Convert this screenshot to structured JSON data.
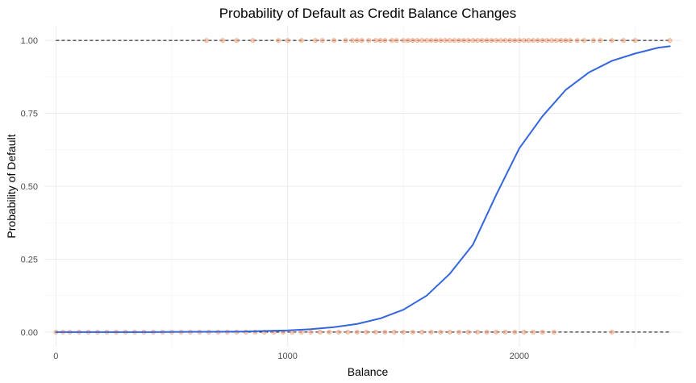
{
  "chart_data": {
    "type": "scatter",
    "title": "Probability of Default as Credit Balance Changes",
    "xlabel": "Balance",
    "ylabel": "Probability of Default",
    "xlim": [
      -50,
      2700
    ],
    "ylim": [
      -0.05,
      1.05
    ],
    "x_ticks": [
      0,
      1000,
      2000
    ],
    "x_tick_labels": [
      "0",
      "1000",
      "2000"
    ],
    "y_ticks": [
      0,
      0.25,
      0.5,
      0.75,
      1
    ],
    "y_tick_labels": [
      "0.00",
      "0.25",
      "0.50",
      "0.75",
      "1.00"
    ],
    "grid": true,
    "legend": "none",
    "reference_lines": [
      0,
      1
    ],
    "colors": {
      "points": "#f4a582",
      "curve": "#3366dd",
      "reference": "#000000"
    },
    "series": [
      {
        "kind": "points",
        "y": 1,
        "x": [
          650,
          720,
          780,
          850,
          960,
          1000,
          1060,
          1120,
          1150,
          1200,
          1250,
          1280,
          1300,
          1320,
          1350,
          1380,
          1400,
          1420,
          1450,
          1470,
          1500,
          1520,
          1540,
          1560,
          1580,
          1600,
          1620,
          1640,
          1660,
          1680,
          1700,
          1720,
          1740,
          1760,
          1780,
          1800,
          1820,
          1840,
          1860,
          1880,
          1900,
          1920,
          1940,
          1960,
          1980,
          2000,
          2020,
          2040,
          2060,
          2080,
          2100,
          2120,
          2140,
          2160,
          2180,
          2200,
          2220,
          2250,
          2280,
          2320,
          2350,
          2400,
          2450,
          2500,
          2650
        ]
      },
      {
        "kind": "points",
        "y": 0,
        "x": [
          0,
          30,
          60,
          100,
          140,
          180,
          220,
          260,
          300,
          340,
          380,
          420,
          460,
          500,
          540,
          580,
          620,
          660,
          700,
          740,
          780,
          820,
          860,
          900,
          940,
          980,
          1020,
          1060,
          1100,
          1140,
          1180,
          1220,
          1260,
          1300,
          1340,
          1380,
          1420,
          1460,
          1500,
          1540,
          1580,
          1620,
          1660,
          1700,
          1740,
          1780,
          1820,
          1860,
          1900,
          1940,
          1980,
          2020,
          2060,
          2100,
          2150,
          2400
        ]
      },
      {
        "kind": "curve",
        "x": [
          0,
          200,
          400,
          600,
          800,
          1000,
          1100,
          1200,
          1300,
          1400,
          1500,
          1600,
          1700,
          1800,
          1900,
          2000,
          2100,
          2200,
          2300,
          2400,
          2500,
          2600,
          2650
        ],
        "y": [
          0.0,
          0.0,
          0.0,
          0.001,
          0.002,
          0.006,
          0.01,
          0.017,
          0.028,
          0.047,
          0.077,
          0.125,
          0.2,
          0.3,
          0.47,
          0.63,
          0.74,
          0.83,
          0.89,
          0.93,
          0.955,
          0.975,
          0.98
        ]
      }
    ]
  }
}
